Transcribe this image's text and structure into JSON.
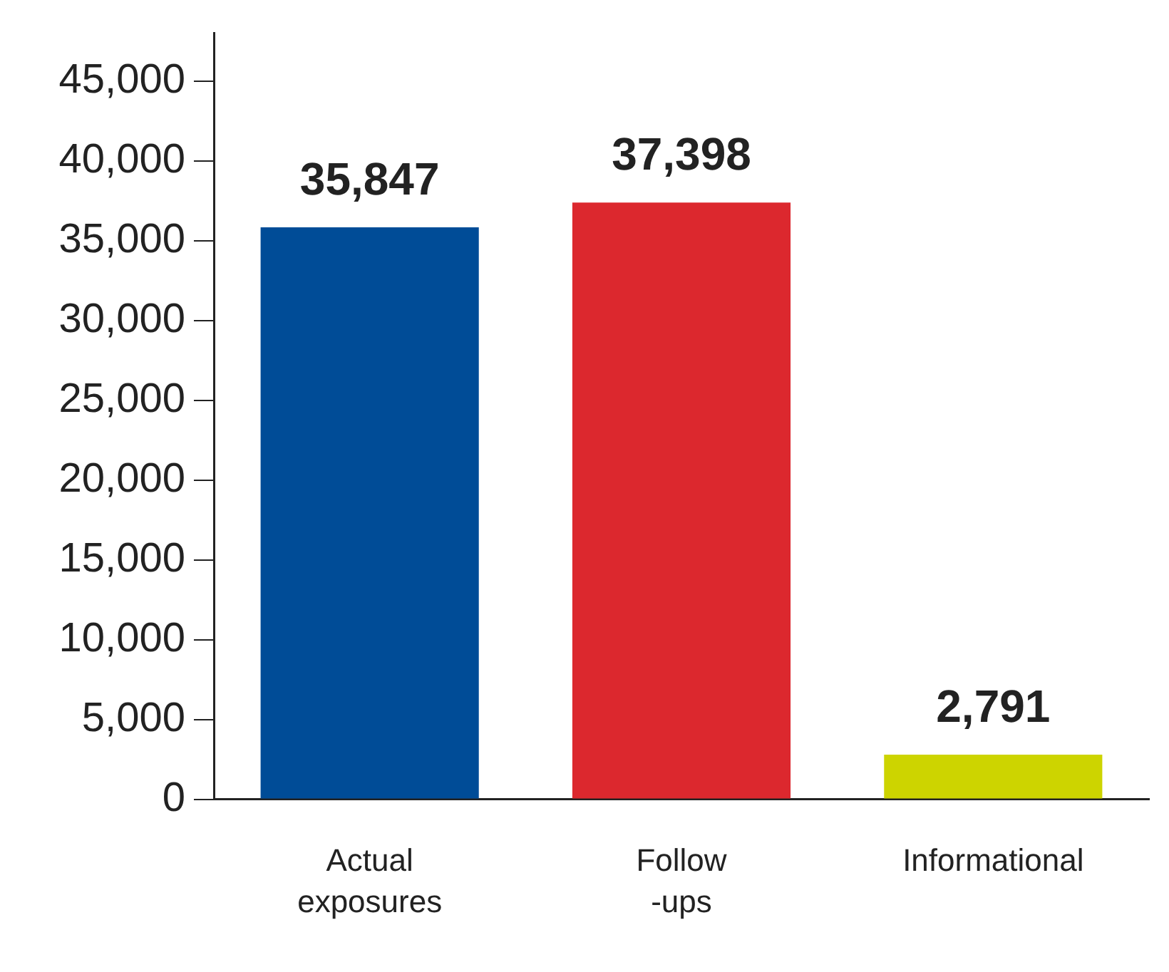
{
  "chart_data": {
    "type": "bar",
    "categories": [
      "Actual exposures",
      "Follow-ups",
      "Informational"
    ],
    "values": [
      35847,
      37398,
      2791
    ],
    "value_labels": [
      "35,847",
      "37,398",
      "2,791"
    ],
    "colors": [
      "#004c97",
      "#dc282e",
      "#cdd400"
    ],
    "ylim": [
      0,
      48000
    ],
    "yticks": [
      0,
      {
        "value": 5000,
        "label": "5,000"
      },
      {
        "value": 10000,
        "label": "10,000"
      },
      {
        "value": 15000,
        "label": "15,000"
      },
      {
        "value": 20000,
        "label": "20,000"
      },
      {
        "value": 25000,
        "label": "25,000"
      },
      {
        "value": 30000,
        "label": "30,000"
      },
      {
        "value": 35000,
        "label": "35,000"
      },
      {
        "value": 40000,
        "label": "40,000"
      },
      {
        "value": 45000,
        "label": "45,000"
      }
    ],
    "grid": false,
    "legend": false
  }
}
